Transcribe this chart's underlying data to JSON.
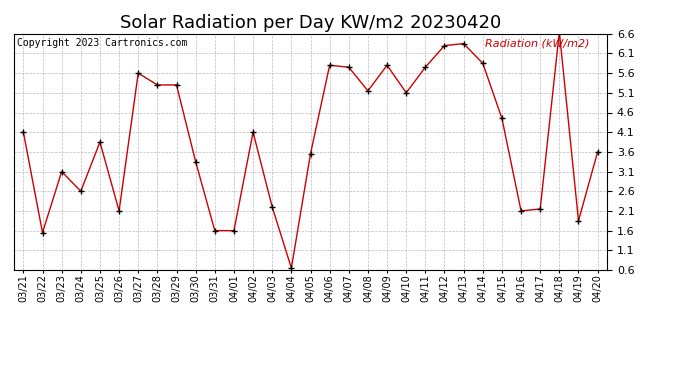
{
  "title": "Solar Radiation per Day KW/m2 20230420",
  "copyright": "Copyright 2023 Cartronics.com",
  "legend_label": "Radiation (kW/m2)",
  "dates": [
    "03/21",
    "03/22",
    "03/23",
    "03/24",
    "03/25",
    "03/26",
    "03/27",
    "03/28",
    "03/29",
    "03/30",
    "03/31",
    "04/01",
    "04/02",
    "04/03",
    "04/04",
    "04/05",
    "04/06",
    "04/07",
    "04/08",
    "04/09",
    "04/10",
    "04/11",
    "04/12",
    "04/13",
    "04/14",
    "04/15",
    "04/16",
    "04/17",
    "04/18",
    "04/19",
    "04/20"
  ],
  "values": [
    4.1,
    1.55,
    3.1,
    2.6,
    3.85,
    2.1,
    5.6,
    5.3,
    5.3,
    3.35,
    1.6,
    1.6,
    4.1,
    2.2,
    0.65,
    3.55,
    5.8,
    5.75,
    5.15,
    5.8,
    5.1,
    5.75,
    6.3,
    6.35,
    5.85,
    4.45,
    2.1,
    2.15,
    6.65,
    1.85,
    3.6
  ],
  "line_color": "#cc0000",
  "marker": "+",
  "marker_color": "#000000",
  "ylim_min": 0.6,
  "ylim_max": 6.6,
  "yticks": [
    0.6,
    1.1,
    1.6,
    2.1,
    2.6,
    3.1,
    3.6,
    4.1,
    4.6,
    5.1,
    5.6,
    6.1,
    6.6
  ],
  "background_color": "#ffffff",
  "grid_color": "#aaaaaa",
  "title_fontsize": 13,
  "tick_fontsize": 7,
  "ytick_fontsize": 8,
  "legend_color": "#cc0000",
  "copyright_color": "#000000",
  "copyright_fontsize": 7,
  "legend_fontsize": 8
}
